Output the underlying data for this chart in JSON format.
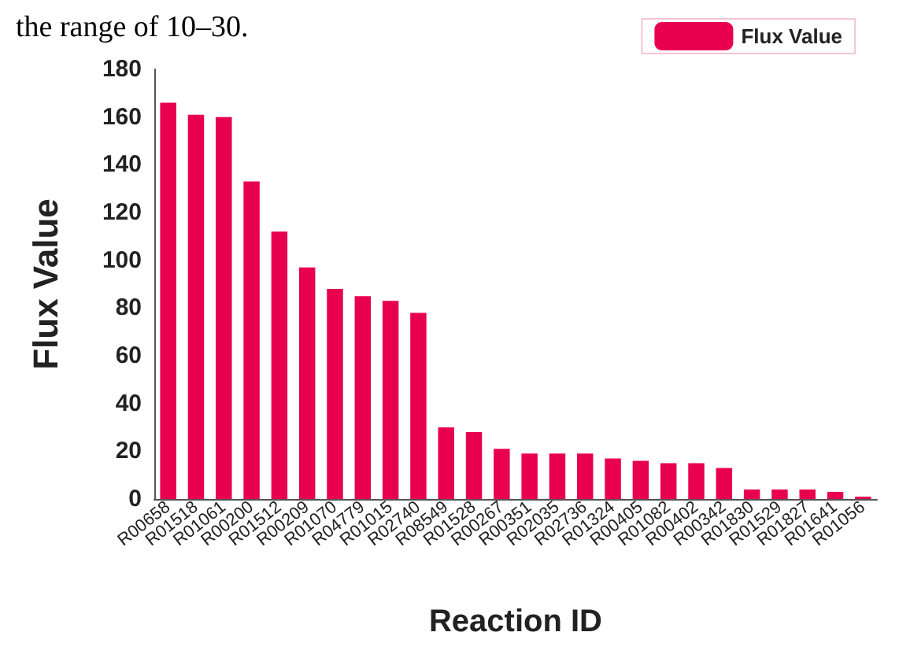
{
  "chart_data": {
    "type": "bar",
    "xlabel": "Reaction ID",
    "ylabel": "Flux Value",
    "annotations": [
      "the range of 10–30."
    ],
    "categories": [
      "R00658",
      "R01518",
      "R01061",
      "R00200",
      "R01512",
      "R00209",
      "R01070",
      "R04779",
      "R01015",
      "R02740",
      "R08549",
      "R01528",
      "R00267",
      "R00351",
      "R02035",
      "R02736",
      "R01324",
      "R00405",
      "R01082",
      "R00402",
      "R00342",
      "R01830",
      "R01529",
      "R01827",
      "R01641",
      "R01056"
    ],
    "series": [
      {
        "name": "Flux Value",
        "color": "#e8004f",
        "values": [
          166,
          161,
          160,
          133,
          112,
          97,
          88,
          85,
          83,
          78,
          30,
          28,
          21,
          19,
          19,
          19,
          17,
          16,
          15,
          15,
          13,
          4,
          4,
          4,
          3,
          1
        ]
      }
    ],
    "ylim": [
      0,
      180
    ],
    "yticks": [
      0,
      20,
      40,
      60,
      80,
      100,
      120,
      140,
      160,
      180
    ],
    "grid": false,
    "legend": "top right"
  }
}
